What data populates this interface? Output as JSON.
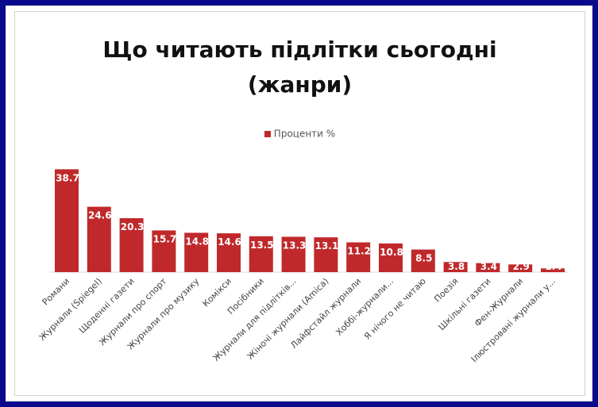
{
  "chart_data": {
    "type": "bar",
    "title_line1": "Що читають підлітки сьогодні",
    "title_line2": "(жанри)",
    "legend": "Проценти %",
    "series": [
      {
        "name": "Проценти %",
        "color": "#c0292b"
      }
    ],
    "categories": [
      "Романи",
      "Журнали (Spiegel)",
      "Щоденні газети",
      "Журнали про спорт",
      "Журнали про музику",
      "Комікси",
      "Посібники",
      "Журнали для підлітків...",
      "Жіночі журнали (Amica)",
      "Лайфстайл журнали",
      "Хоббі-журнали...",
      "Я нічого не читаю",
      "Поезія",
      "Шкільні газети",
      "Фен-Журнали",
      "Ілюстровані журнали у..."
    ],
    "values": [
      38.7,
      24.6,
      20.3,
      15.7,
      14.8,
      14.6,
      13.5,
      13.3,
      13.1,
      11.2,
      10.8,
      8.5,
      3.8,
      3.4,
      2.9,
      1.4
    ],
    "ylim": [
      0,
      40
    ],
    "grid": false,
    "legend_position": "top"
  }
}
